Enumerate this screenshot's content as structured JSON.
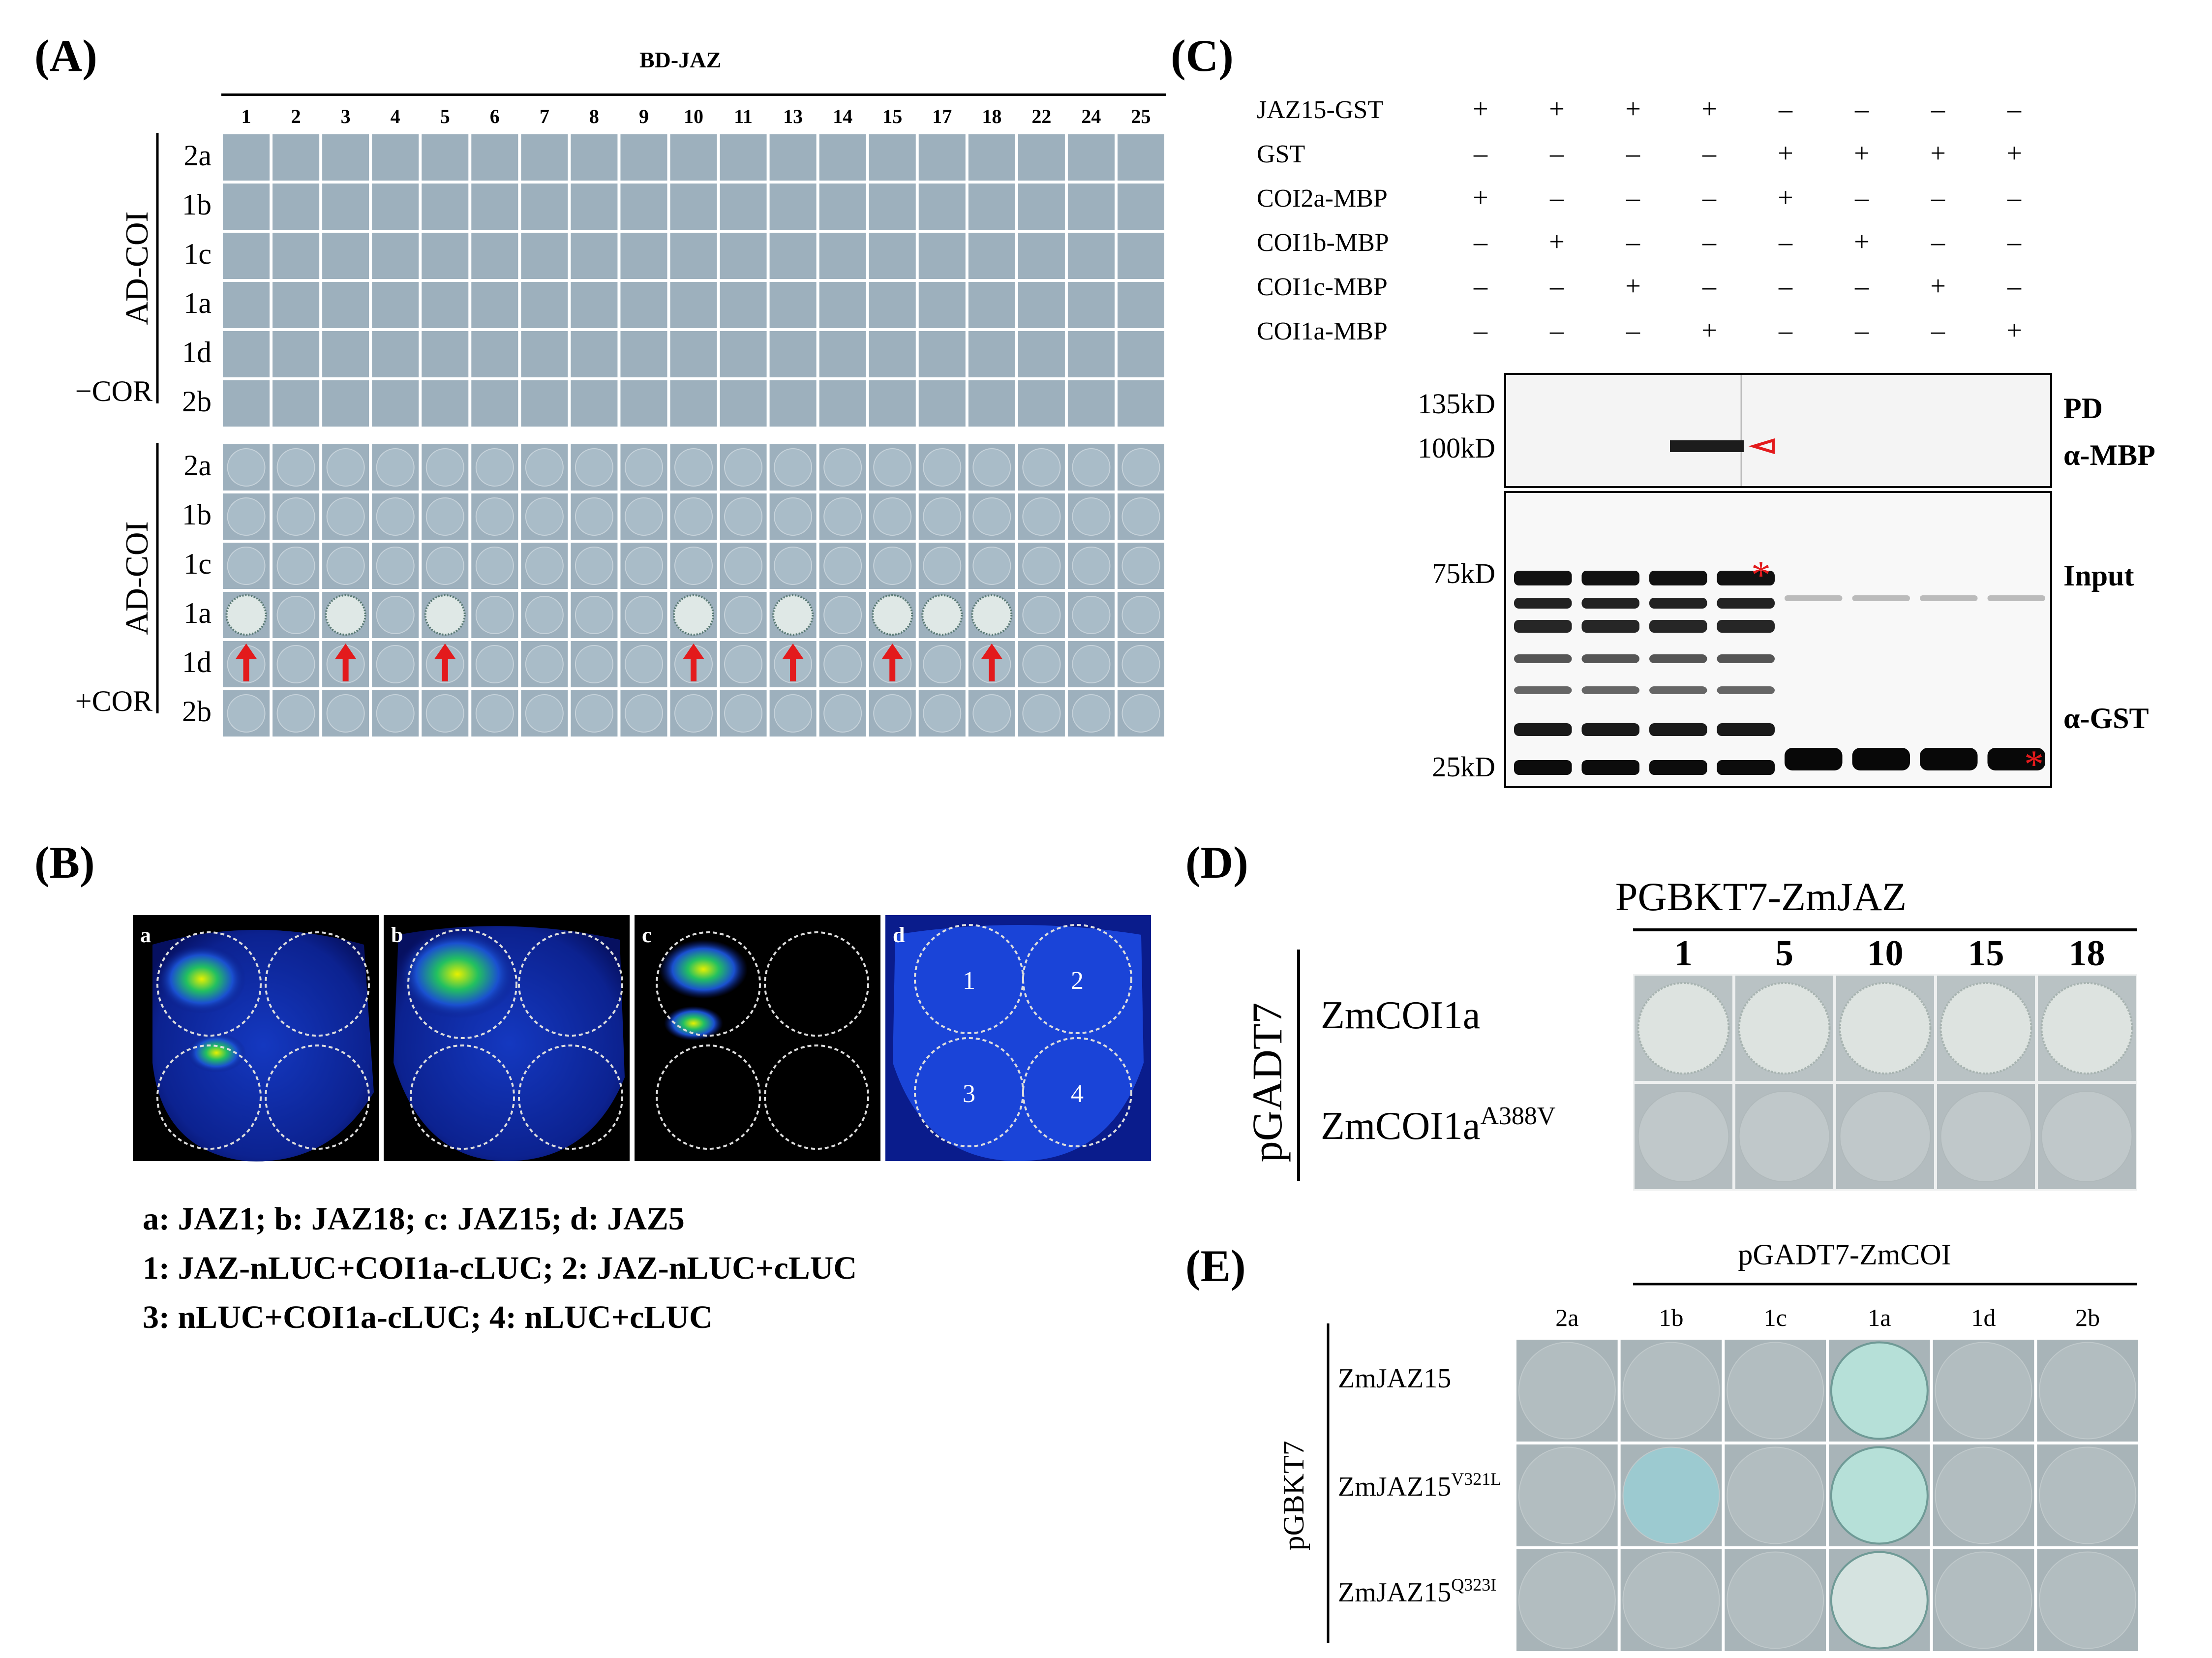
{
  "panels": {
    "A": {
      "label": "(A)",
      "header": "BD-JAZ",
      "jaz_numbers": [
        "1",
        "2",
        "3",
        "4",
        "5",
        "6",
        "7",
        "8",
        "9",
        "10",
        "11",
        "13",
        "14",
        "15",
        "17",
        "18",
        "22",
        "24",
        "25"
      ],
      "row_labels": [
        "2a",
        "1b",
        "1c",
        "1a",
        "1d",
        "2b"
      ],
      "group_label": "AD-COI",
      "condition_minus": "−COR",
      "condition_plus": "+COR",
      "positive_columns_plus_1a": [
        "1",
        "3",
        "5",
        "10",
        "13",
        "15",
        "17",
        "18"
      ],
      "arrow_columns": [
        "1",
        "3",
        "5",
        "10",
        "13",
        "15",
        "18"
      ],
      "colors": {
        "well": "#9db0bd",
        "grid": "#ffffff",
        "arrow": "#e31a1c",
        "colony": "#dfe8e6"
      }
    },
    "B": {
      "label": "(B)",
      "image_letters": [
        "a",
        "b",
        "c",
        "d"
      ],
      "circle_numbers": [
        "1",
        "2",
        "3",
        "4"
      ],
      "legend": [
        "a: JAZ1; b: JAZ18; c: JAZ15; d: JAZ5",
        "1: JAZ-nLUC+COI1a-cLUC; 2: JAZ-nLUC+cLUC",
        "3: nLUC+COI1a-cLUC; 4: nLUC+cLUC"
      ]
    },
    "C": {
      "label": "(C)",
      "rows": [
        {
          "name": "JAZ15-GST",
          "signs": [
            "+",
            "+",
            "+",
            "+",
            "–",
            "–",
            "–",
            "–"
          ]
        },
        {
          "name": "GST",
          "signs": [
            "–",
            "–",
            "–",
            "–",
            "+",
            "+",
            "+",
            "+"
          ]
        },
        {
          "name": "COI2a-MBP",
          "signs": [
            "+",
            "–",
            "–",
            "–",
            "+",
            "–",
            "–",
            "–"
          ]
        },
        {
          "name": "COI1b-MBP",
          "signs": [
            "–",
            "+",
            "–",
            "–",
            "–",
            "+",
            "–",
            "–"
          ]
        },
        {
          "name": "COI1c-MBP",
          "signs": [
            "–",
            "–",
            "+",
            "–",
            "–",
            "–",
            "+",
            "–"
          ]
        },
        {
          "name": "COI1a-MBP",
          "signs": [
            "–",
            "–",
            "–",
            "+",
            "–",
            "–",
            "–",
            "+"
          ]
        }
      ],
      "markers_top": [
        "135kD",
        "100kD"
      ],
      "markers_bottom": [
        "75kD",
        "25kD"
      ],
      "label_pd": "PD",
      "label_ambp": "α-MBP",
      "label_input": "Input",
      "label_agst": "α-GST",
      "asterisk": "*"
    },
    "D": {
      "label": "(D)",
      "header": "PGBKT7-ZmJAZ",
      "columns": [
        "1",
        "5",
        "10",
        "15",
        "18"
      ],
      "row1": "ZmCOI1a",
      "row2_base": "ZmCOI1a",
      "row2_sup": "A388V",
      "side_label": "pGADT7"
    },
    "E": {
      "label": "(E)",
      "header": "pGADT7-ZmCOI",
      "columns": [
        "2a",
        "1b",
        "1c",
        "1a",
        "1d",
        "2b"
      ],
      "row1": "ZmJAZ15",
      "row2_base": "ZmJAZ15",
      "row2_sup": "V321L",
      "row3_base": "ZmJAZ15",
      "row3_sup": "Q323I",
      "side_label": "pGBKT7"
    }
  }
}
